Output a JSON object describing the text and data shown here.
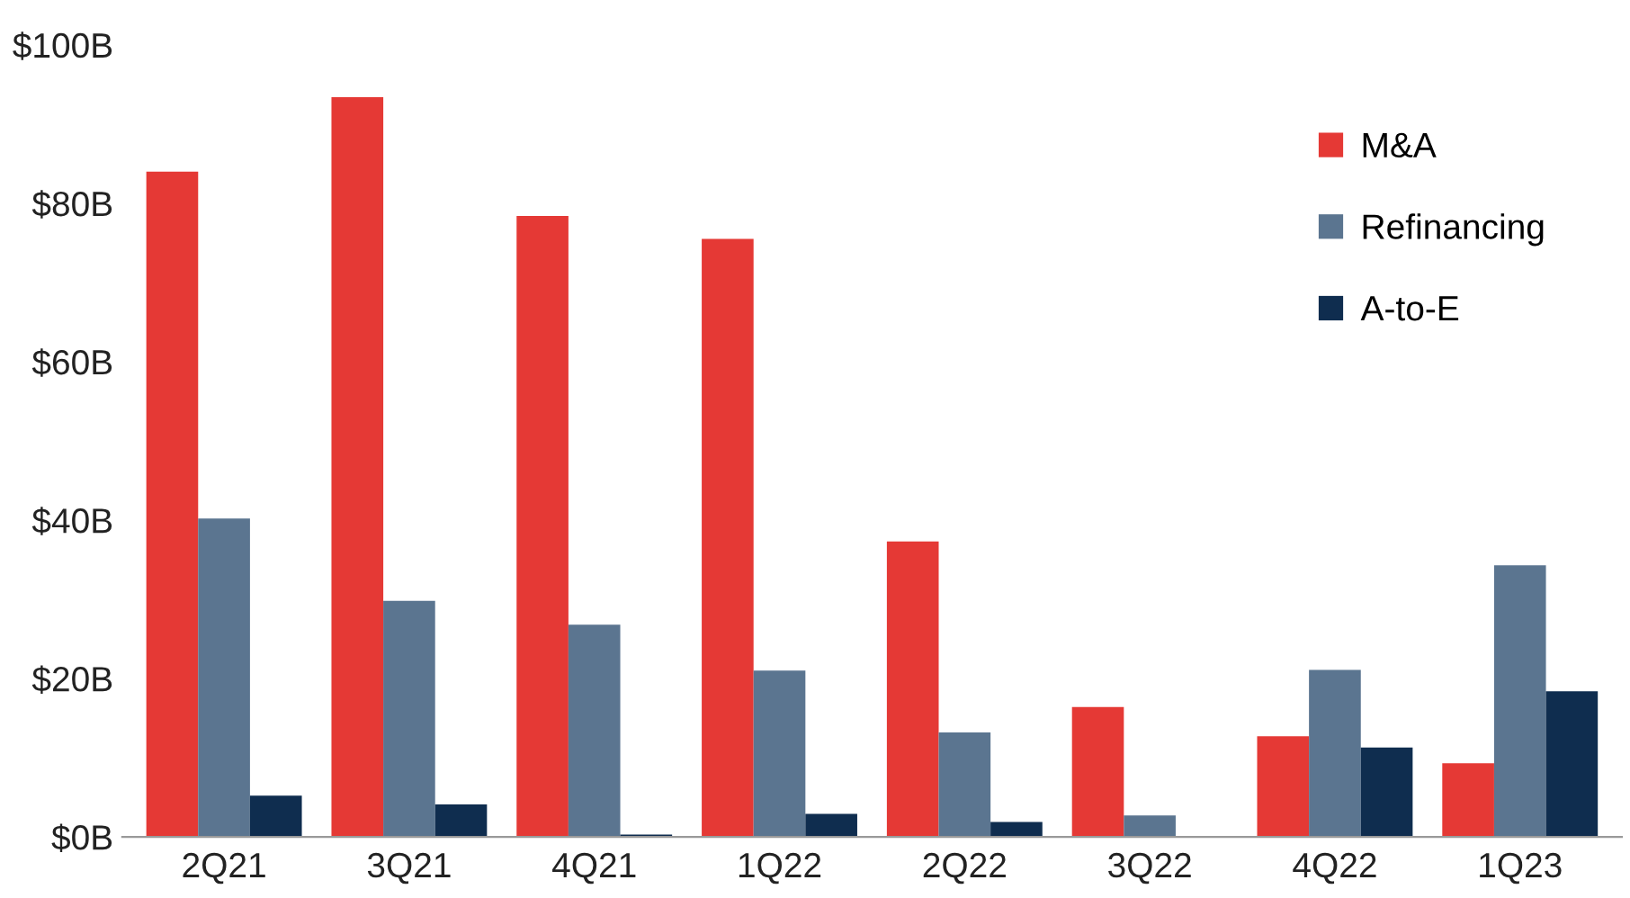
{
  "chart_data": {
    "type": "bar",
    "categories": [
      "2Q21",
      "3Q21",
      "4Q21",
      "1Q22",
      "2Q22",
      "3Q22",
      "4Q22",
      "1Q23"
    ],
    "series": [
      {
        "name": "M&A",
        "color": "#e53935",
        "values": [
          84,
          93.4,
          78.4,
          75.5,
          37.3,
          16.4,
          12.7,
          9.3
        ]
      },
      {
        "name": "Refinancing",
        "color": "#5b7590",
        "values": [
          40.2,
          29.8,
          26.8,
          21,
          13.2,
          2.7,
          21.1,
          34.3
        ]
      },
      {
        "name": "A-to-E",
        "color": "#0f2d4f",
        "values": [
          5.2,
          4.1,
          0.3,
          2.9,
          1.9,
          0,
          11.3,
          18.4
        ]
      }
    ],
    "ylim": [
      0,
      100
    ],
    "yticks": [
      {
        "value": 0,
        "label": "$0B"
      },
      {
        "value": 20,
        "label": "$20B"
      },
      {
        "value": 40,
        "label": "$40B"
      },
      {
        "value": 60,
        "label": "$60B"
      },
      {
        "value": 80,
        "label": "$80B"
      },
      {
        "value": 100,
        "label": "$100B"
      }
    ],
    "grid": false,
    "legend": "top right"
  }
}
